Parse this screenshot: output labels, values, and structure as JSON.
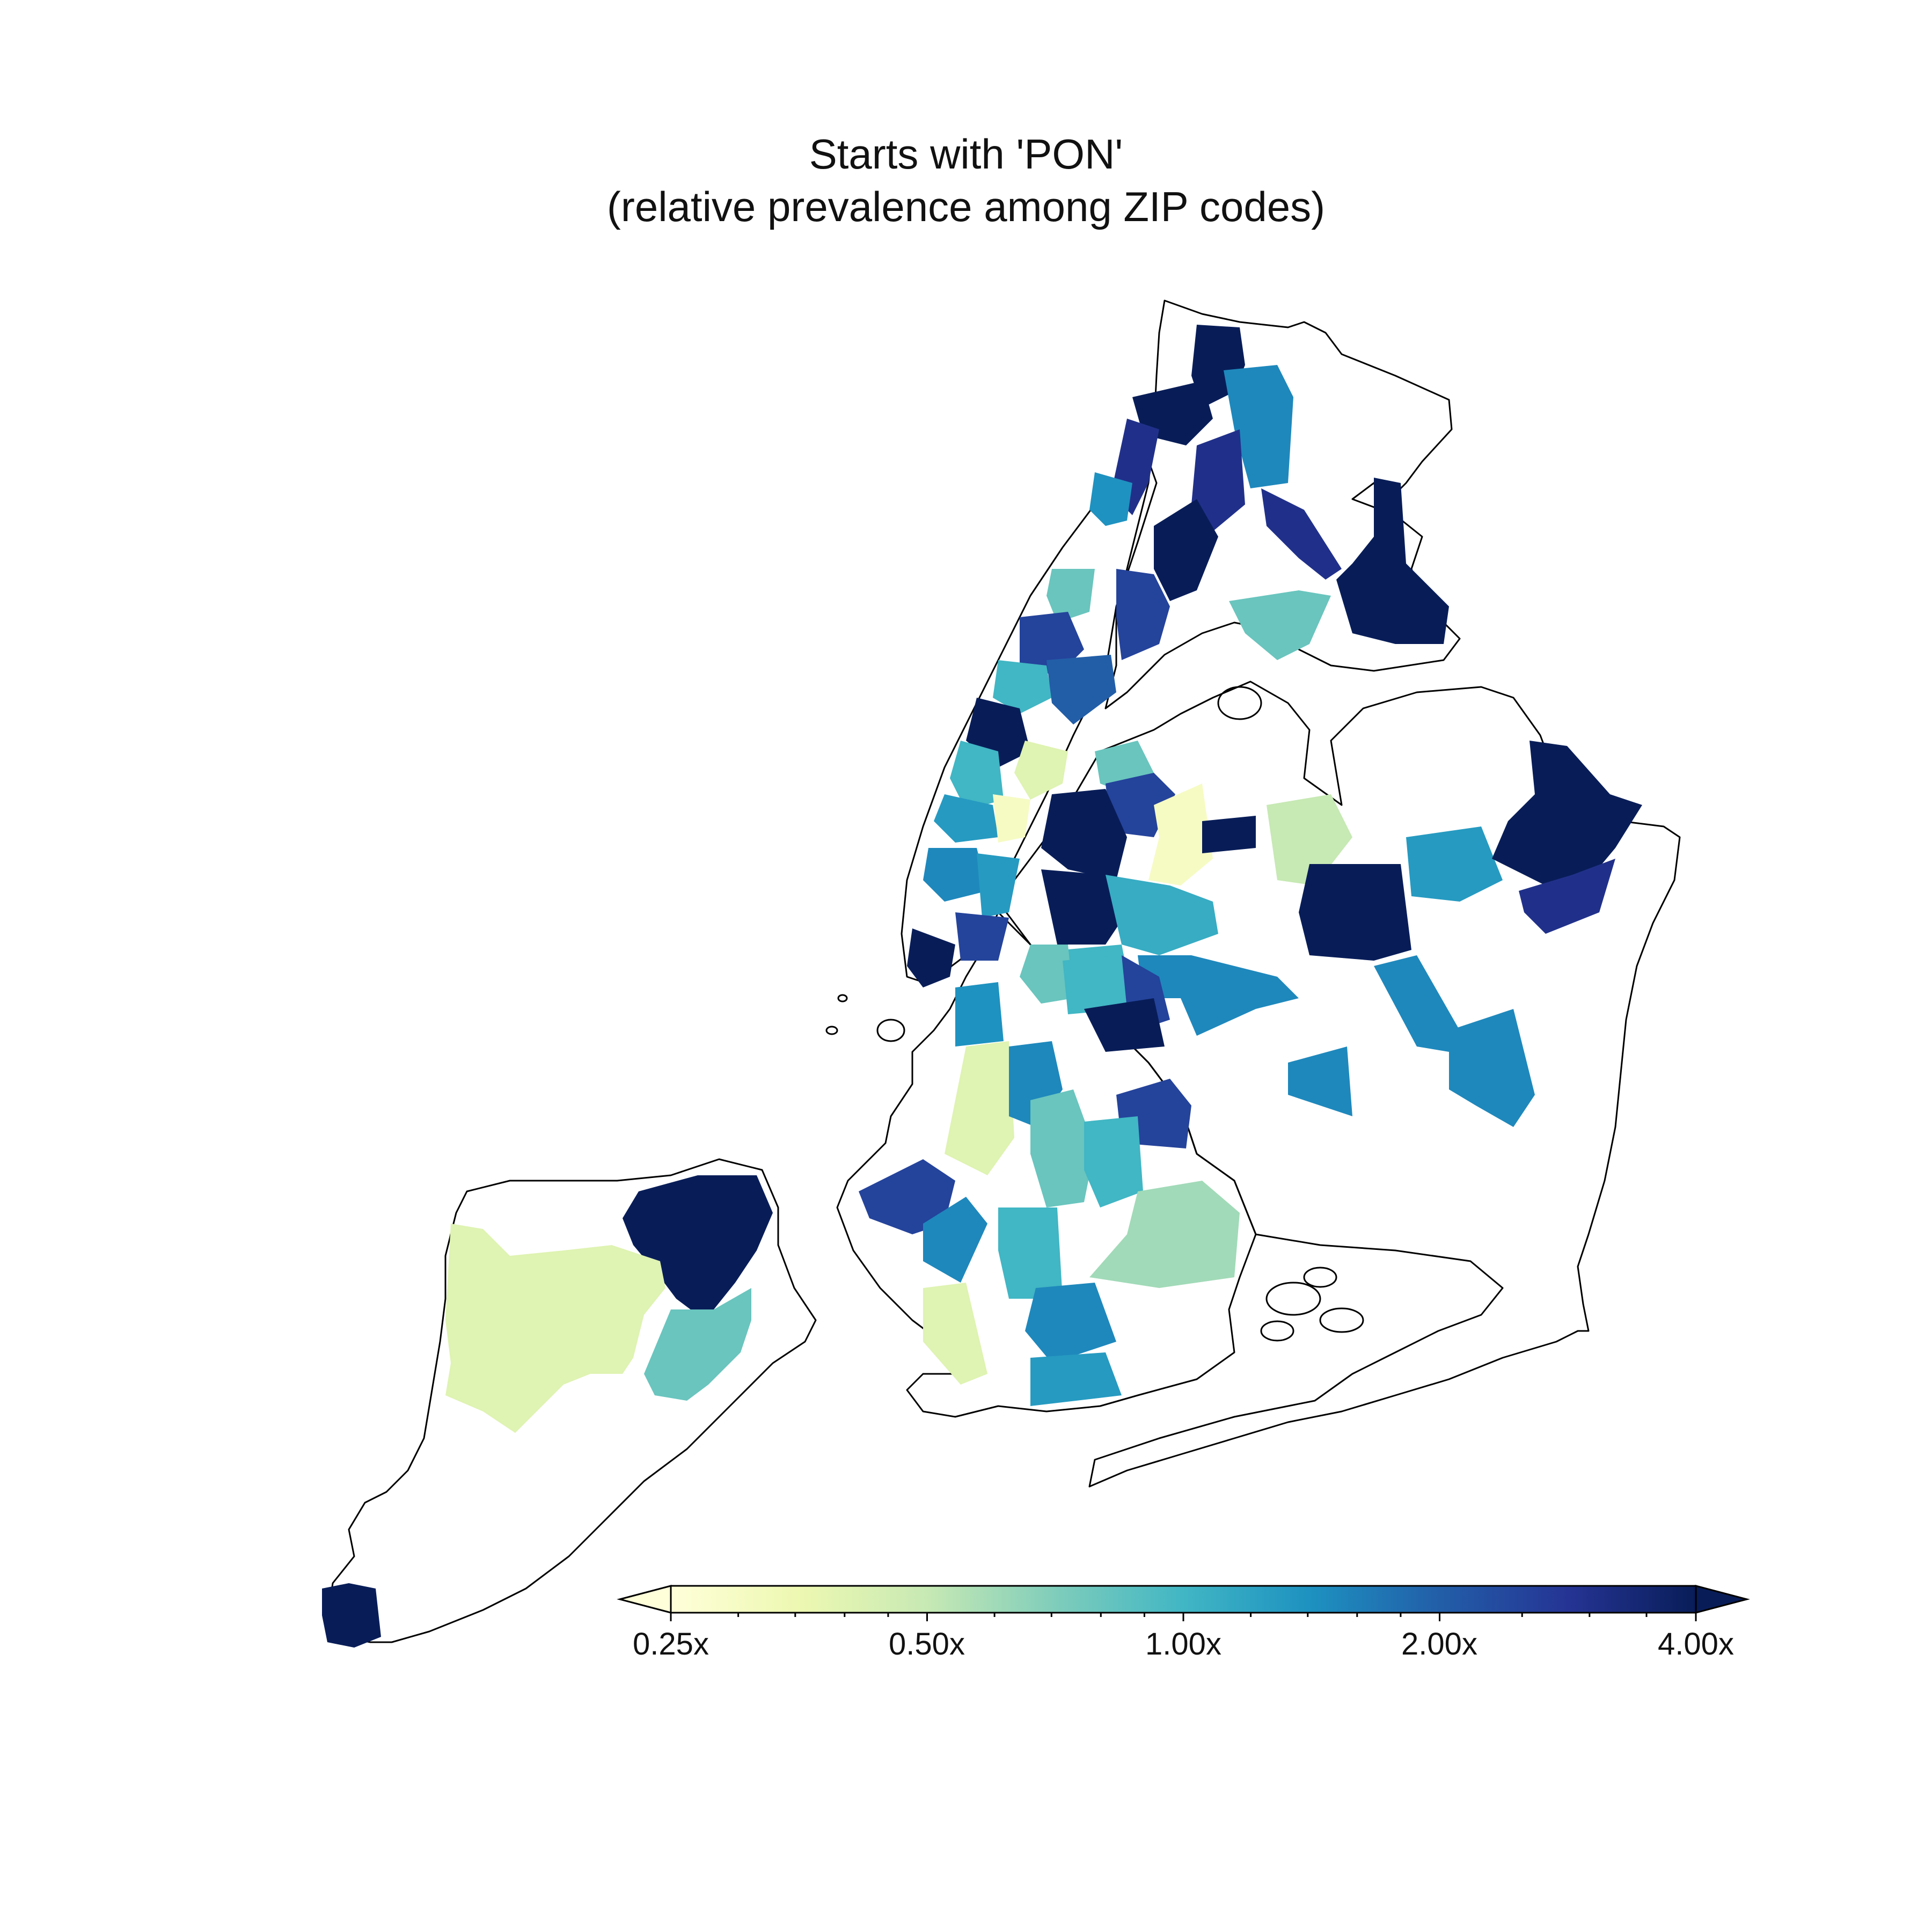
{
  "title": {
    "line1": "Starts with 'PON'",
    "line2": "(relative prevalence among ZIP codes)"
  },
  "colorbar": {
    "ticks": [
      "0.25x",
      "0.50x",
      "1.00x",
      "2.00x",
      "4.00x"
    ],
    "tick_values": [
      0.25,
      0.5,
      1.0,
      2.0,
      4.0
    ],
    "scale": "log2",
    "extend": "both",
    "colormap": "YlGnBu",
    "stops": [
      "#ffffd9",
      "#edf8b1",
      "#c7e9b4",
      "#7fcdbb",
      "#41b6c4",
      "#1d91c0",
      "#225ea8",
      "#253494",
      "#081d58"
    ]
  },
  "chart_data": {
    "type": "choropleth",
    "title": "Starts with 'PON' (relative prevalence among ZIP codes)",
    "value_range": [
      0.25,
      4.0
    ],
    "scale": "log2",
    "legend_placement": "bottom",
    "regions": [
      {
        "area": "north-bronx-west",
        "value": 4.0
      },
      {
        "area": "riverdale",
        "value": 4.0
      },
      {
        "area": "bronx-center-north",
        "value": 1.5
      },
      {
        "area": "bronx-northeast",
        "value": 4.0
      },
      {
        "area": "bronx-fordham",
        "value": 3.0
      },
      {
        "area": "bronx-west-central",
        "value": 4.0
      },
      {
        "area": "bronx-south-central",
        "value": 2.5
      },
      {
        "area": "bronx-east",
        "value": 3.0
      },
      {
        "area": "throgs-neck",
        "value": 0.8
      },
      {
        "area": "washington-heights",
        "value": 3.0
      },
      {
        "area": "inwood-south",
        "value": 1.4
      },
      {
        "area": "harlem-upper",
        "value": 0.8
      },
      {
        "area": "harlem-west",
        "value": 2.5
      },
      {
        "area": "harlem-central",
        "value": 1.0
      },
      {
        "area": "east-harlem",
        "value": 2.0
      },
      {
        "area": "upper-west-side",
        "value": 4.0
      },
      {
        "area": "upper-west-side-south",
        "value": 1.0
      },
      {
        "area": "upper-east-side",
        "value": 0.4
      },
      {
        "area": "midtown-west",
        "value": 1.3
      },
      {
        "area": "midtown",
        "value": 0.3
      },
      {
        "area": "chelsea",
        "value": 1.5
      },
      {
        "area": "village",
        "value": 1.3
      },
      {
        "area": "lower-east-side",
        "value": 2.5
      },
      {
        "area": "lower-manhattan",
        "value": 4.0
      },
      {
        "area": "roosevelt-queens-north",
        "value": 0.8
      },
      {
        "area": "astoria",
        "value": 2.5
      },
      {
        "area": "long-island-city",
        "value": 4.0
      },
      {
        "area": "sunnyside",
        "value": 4.0
      },
      {
        "area": "jackson-heights",
        "value": 0.3
      },
      {
        "area": "corona",
        "value": 4.0
      },
      {
        "area": "flushing",
        "value": 0.5
      },
      {
        "area": "fresh-meadows",
        "value": 4.0
      },
      {
        "area": "bayside",
        "value": 1.3
      },
      {
        "area": "little-neck",
        "value": 4.0
      },
      {
        "area": "queens-village",
        "value": 3.0
      },
      {
        "area": "woodside",
        "value": 1.1
      },
      {
        "area": "elmhurst",
        "value": 1.0
      },
      {
        "area": "maspeth",
        "value": 1.5
      },
      {
        "area": "ridgewood",
        "value": 2.5
      },
      {
        "area": "jamaica",
        "value": 1.5
      },
      {
        "area": "st-albans",
        "value": 1.5
      },
      {
        "area": "ozone-park",
        "value": 1.5
      },
      {
        "area": "williamsburg",
        "value": 0.8
      },
      {
        "area": "greenpoint",
        "value": 1.0
      },
      {
        "area": "bushwick",
        "value": 4.0
      },
      {
        "area": "downtown-brooklyn",
        "value": 1.4
      },
      {
        "area": "park-slope",
        "value": 0.4
      },
      {
        "area": "crown-heights",
        "value": 1.5
      },
      {
        "area": "east-flatbush",
        "value": 2.5
      },
      {
        "area": "flatbush",
        "value": 0.8
      },
      {
        "area": "sunset-park",
        "value": 2.5
      },
      {
        "area": "bay-ridge",
        "value": 1.5
      },
      {
        "area": "bensonhurst",
        "value": 1.0
      },
      {
        "area": "midwood",
        "value": 1.0
      },
      {
        "area": "canarsie",
        "value": 0.6
      },
      {
        "area": "sheepshead-bay",
        "value": 1.5
      },
      {
        "area": "coney-island",
        "value": 1.3
      },
      {
        "area": "dyker-heights",
        "value": 0.4
      },
      {
        "area": "staten-island-north",
        "value": 4.0
      },
      {
        "area": "staten-island-west",
        "value": 0.4
      },
      {
        "area": "staten-island-east",
        "value": 0.8
      },
      {
        "area": "tottenville",
        "value": 4.0
      }
    ]
  }
}
